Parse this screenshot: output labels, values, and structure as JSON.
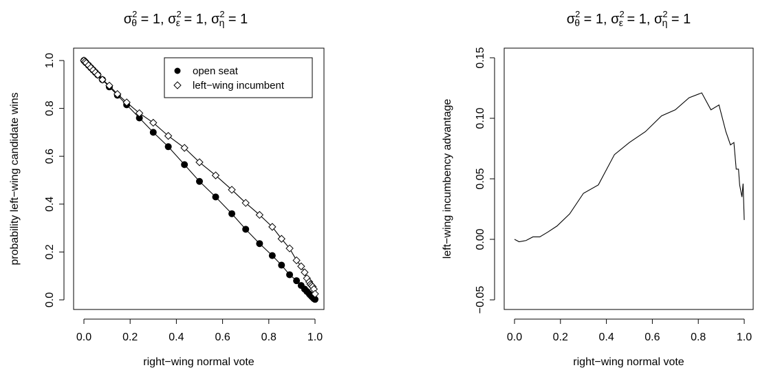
{
  "chart_data": [
    {
      "type": "line",
      "title": {
        "sigma": "σ",
        "sq": "2",
        "sub1": "θ",
        "sub2": "ε",
        "sub3": "η",
        "eq": " = 1, ",
        "last": " = 1"
      },
      "xlabel": "right−wing normal vote",
      "ylabel": "probability left−wing candidate wins",
      "xlim": [
        0,
        1
      ],
      "ylim": [
        0,
        1
      ],
      "xticks": [
        "0.0",
        "0.2",
        "0.4",
        "0.6",
        "0.8",
        "1.0"
      ],
      "yticks": [
        "0.0",
        "0.2",
        "0.4",
        "0.6",
        "0.8",
        "1.0"
      ],
      "legend_position": "top-right",
      "series": [
        {
          "name": "open seat",
          "marker": "filled-circle",
          "points": [
            [
              0.0,
              1.0
            ],
            [
              0.005,
              0.995
            ],
            [
              0.01,
              0.99
            ],
            [
              0.02,
              0.98
            ],
            [
              0.03,
              0.97
            ],
            [
              0.04,
              0.96
            ],
            [
              0.05,
              0.95
            ],
            [
              0.06,
              0.94
            ],
            [
              0.08,
              0.92
            ],
            [
              0.11,
              0.89
            ],
            [
              0.145,
              0.855
            ],
            [
              0.185,
              0.815
            ],
            [
              0.24,
              0.76
            ],
            [
              0.3,
              0.7
            ],
            [
              0.365,
              0.64
            ],
            [
              0.435,
              0.565
            ],
            [
              0.5,
              0.495
            ],
            [
              0.57,
              0.43
            ],
            [
              0.64,
              0.36
            ],
            [
              0.7,
              0.295
            ],
            [
              0.76,
              0.235
            ],
            [
              0.815,
              0.185
            ],
            [
              0.855,
              0.145
            ],
            [
              0.89,
              0.105
            ],
            [
              0.92,
              0.08
            ],
            [
              0.94,
              0.06
            ],
            [
              0.955,
              0.045
            ],
            [
              0.965,
              0.035
            ],
            [
              0.975,
              0.025
            ],
            [
              0.98,
              0.02
            ],
            [
              0.985,
              0.015
            ],
            [
              0.99,
              0.01
            ],
            [
              0.995,
              0.005
            ],
            [
              1.0,
              0.002
            ]
          ]
        },
        {
          "name": "left−wing incumbent",
          "marker": "open-diamond",
          "points": [
            [
              0.0,
              1.0
            ],
            [
              0.005,
              0.995
            ],
            [
              0.01,
              0.99
            ],
            [
              0.02,
              0.98
            ],
            [
              0.03,
              0.97
            ],
            [
              0.04,
              0.96
            ],
            [
              0.05,
              0.95
            ],
            [
              0.06,
              0.94
            ],
            [
              0.08,
              0.92
            ],
            [
              0.11,
              0.895
            ],
            [
              0.145,
              0.86
            ],
            [
              0.185,
              0.825
            ],
            [
              0.24,
              0.78
            ],
            [
              0.3,
              0.74
            ],
            [
              0.365,
              0.685
            ],
            [
              0.435,
              0.635
            ],
            [
              0.5,
              0.575
            ],
            [
              0.57,
              0.52
            ],
            [
              0.64,
              0.46
            ],
            [
              0.7,
              0.405
            ],
            [
              0.76,
              0.355
            ],
            [
              0.815,
              0.305
            ],
            [
              0.855,
              0.255
            ],
            [
              0.89,
              0.215
            ],
            [
              0.92,
              0.165
            ],
            [
              0.94,
              0.14
            ],
            [
              0.955,
              0.115
            ],
            [
              0.965,
              0.09
            ],
            [
              0.975,
              0.075
            ],
            [
              0.98,
              0.065
            ],
            [
              0.985,
              0.06
            ],
            [
              0.99,
              0.055
            ],
            [
              0.995,
              0.045
            ],
            [
              1.0,
              0.025
            ]
          ]
        }
      ]
    },
    {
      "type": "line",
      "title": {
        "sigma": "σ",
        "sq": "2",
        "sub1": "θ",
        "sub2": "ε",
        "sub3": "η",
        "eq": " = 1, ",
        "last": " = 1"
      },
      "xlabel": "right−wing normal vote",
      "ylabel": "left−wing incumbency advantage",
      "xlim": [
        0,
        1
      ],
      "ylim": [
        -0.05,
        0.15
      ],
      "xticks": [
        "0.0",
        "0.2",
        "0.4",
        "0.6",
        "0.8",
        "1.0"
      ],
      "yticks": [
        "−0.05",
        "0.00",
        "0.05",
        "0.10",
        "0.15"
      ],
      "series": [
        {
          "points": [
            [
              0.0,
              0.0
            ],
            [
              0.02,
              -0.002
            ],
            [
              0.05,
              -0.001
            ],
            [
              0.08,
              0.002
            ],
            [
              0.11,
              0.002
            ],
            [
              0.145,
              0.006
            ],
            [
              0.185,
              0.011
            ],
            [
              0.24,
              0.021
            ],
            [
              0.3,
              0.038
            ],
            [
              0.365,
              0.045
            ],
            [
              0.435,
              0.07
            ],
            [
              0.5,
              0.08
            ],
            [
              0.57,
              0.089
            ],
            [
              0.64,
              0.102
            ],
            [
              0.7,
              0.107
            ],
            [
              0.76,
              0.117
            ],
            [
              0.815,
              0.121
            ],
            [
              0.855,
              0.107
            ],
            [
              0.89,
              0.111
            ],
            [
              0.92,
              0.089
            ],
            [
              0.94,
              0.078
            ],
            [
              0.955,
              0.08
            ],
            [
              0.965,
              0.058
            ],
            [
              0.975,
              0.058
            ],
            [
              0.98,
              0.045
            ],
            [
              0.985,
              0.04
            ],
            [
              0.99,
              0.035
            ],
            [
              0.995,
              0.046
            ],
            [
              1.0,
              0.016
            ]
          ]
        }
      ]
    }
  ]
}
